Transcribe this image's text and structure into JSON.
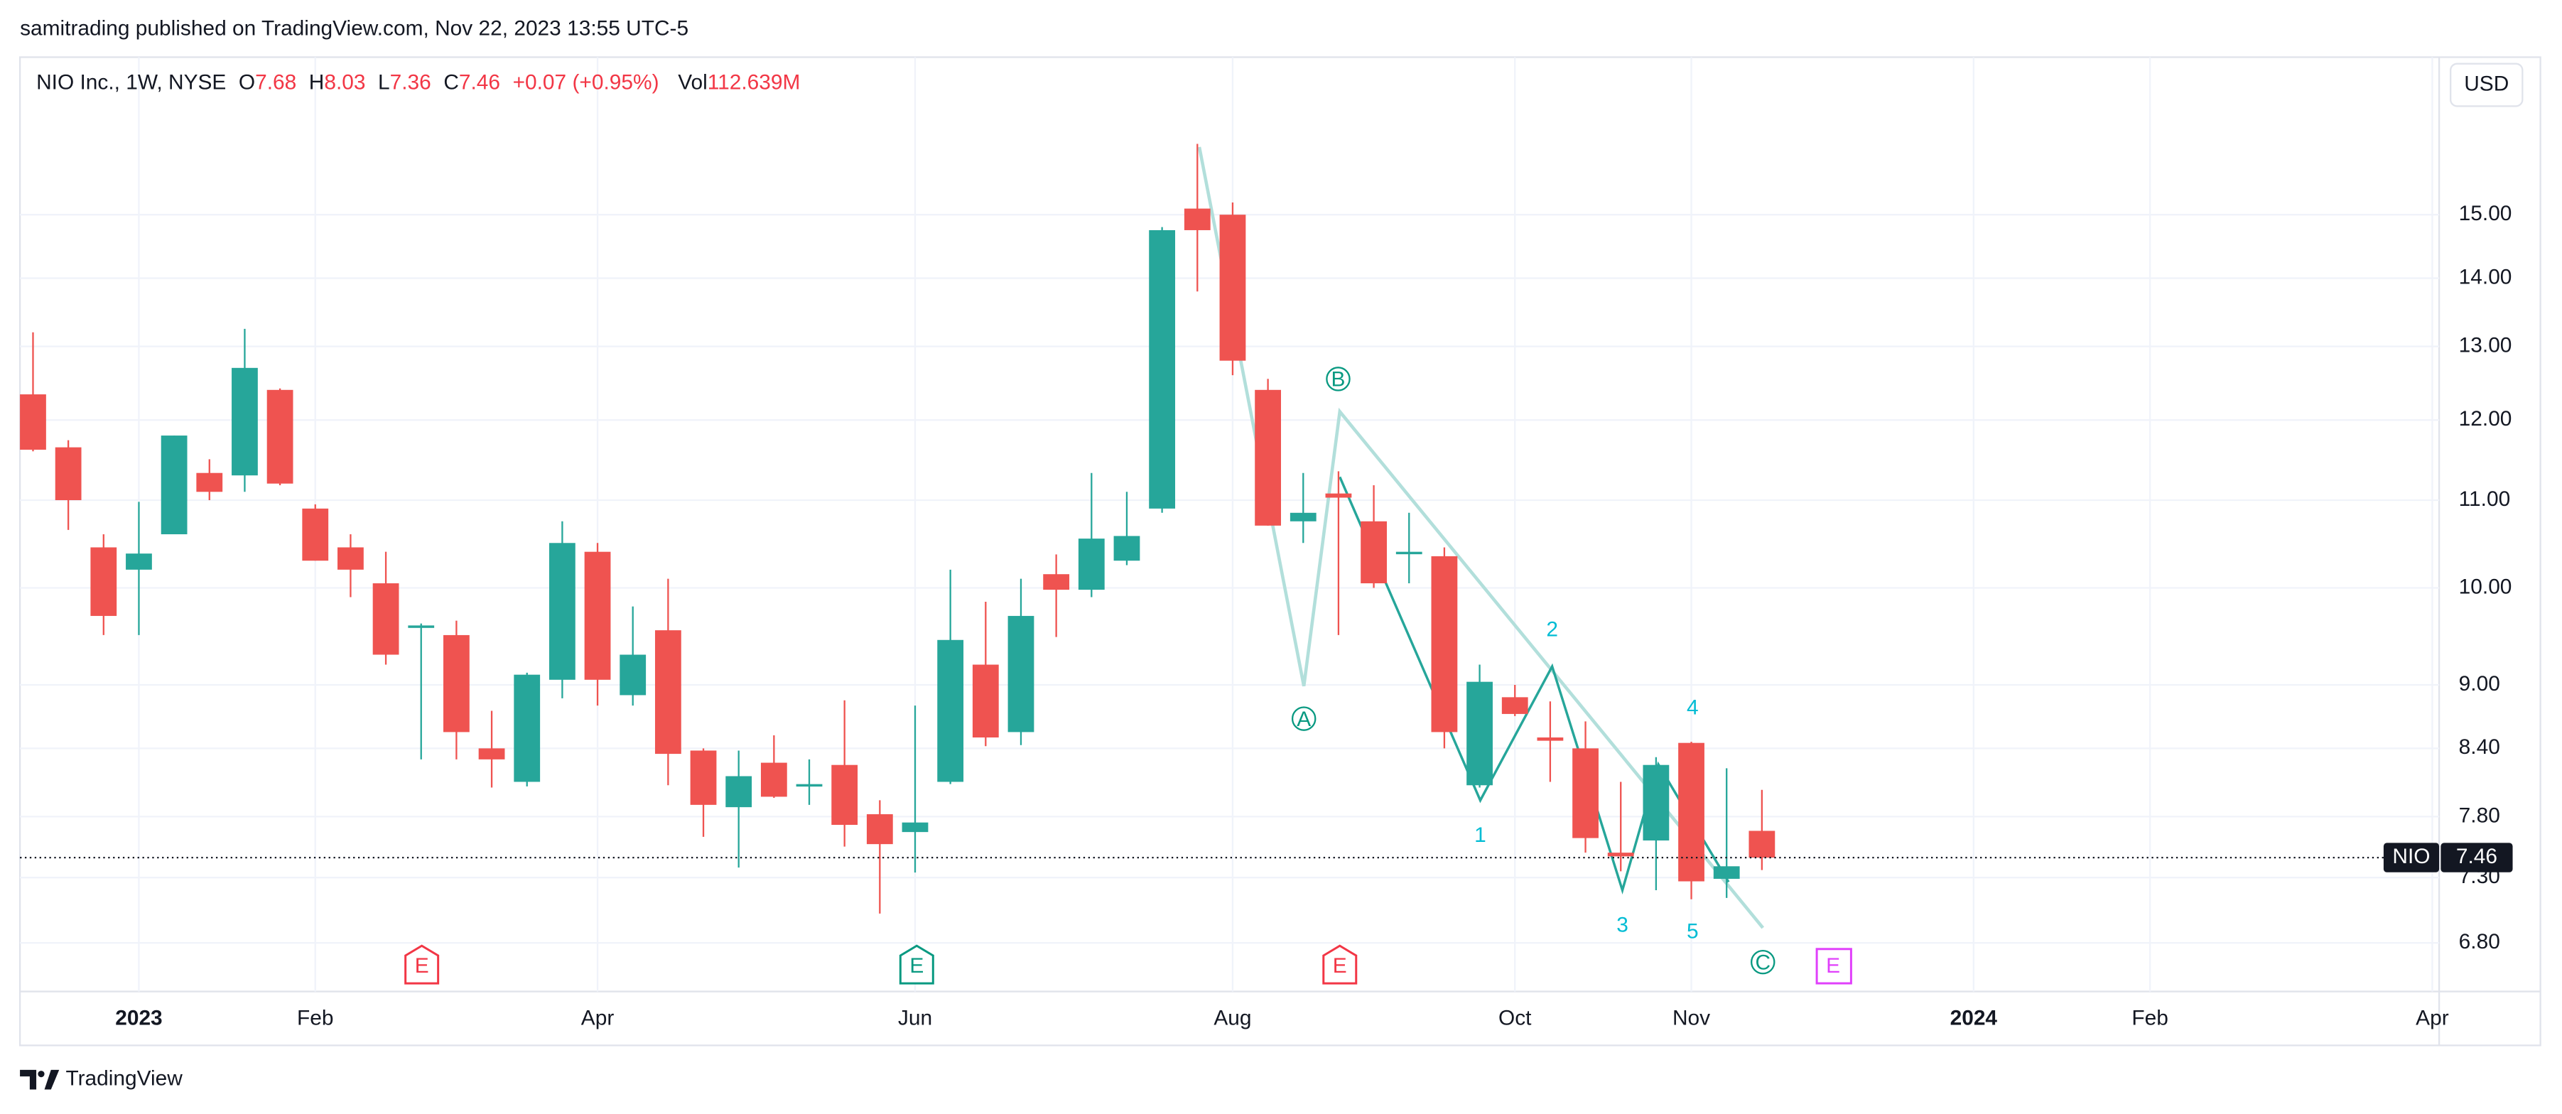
{
  "header": {
    "publisher": "samitrading published on TradingView.com, Nov 22, 2023 13:55 UTC-5"
  },
  "legend_header": {
    "symbol": "NIO Inc., 1W, NYSE",
    "o": "O",
    "h": "H",
    "l": "L",
    "c": "C",
    "change": "+0.07 (+0.95%)",
    "vol_label": "Vol",
    "volume": "112.639M"
  },
  "price_tag": {
    "ticker": "NIO"
  },
  "currency": "USD",
  "chart_data": {
    "type": "candlestick",
    "log_scale": true,
    "grid": true,
    "up_color": "#26a69a",
    "down_color": "#ef5350",
    "categories": [
      null,
      null,
      null,
      "2023",
      null,
      null,
      null,
      null,
      "Feb",
      null,
      null,
      null,
      null,
      null,
      null,
      null,
      "Apr",
      null,
      null,
      null,
      null,
      null,
      null,
      null,
      null,
      "Jun",
      null,
      null,
      null,
      null,
      null,
      null,
      null,
      null,
      "Aug",
      null,
      null,
      null,
      null,
      null,
      null,
      null,
      "Oct",
      null,
      null,
      null,
      null,
      "Nov",
      null,
      null,
      null,
      null,
      null,
      null,
      null,
      "2024",
      null,
      null,
      null,
      null,
      "Feb",
      null,
      null,
      null,
      null,
      null,
      null,
      null,
      "Apr"
    ],
    "open": [
      12.34,
      11.65,
      10.45,
      10.2,
      10.6,
      11.33,
      11.3,
      12.4,
      10.9,
      10.45,
      10.05,
      9.58,
      9.5,
      8.4,
      8.1,
      9.05,
      10.4,
      8.9,
      9.55,
      8.38,
      7.88,
      8.27,
      8.06,
      8.25,
      7.82,
      7.67,
      8.1,
      9.2,
      8.55,
      10.15,
      9.98,
      10.3,
      10.9,
      15.1,
      15.0,
      12.4,
      10.75,
      11.08,
      10.75,
      10.38,
      10.35,
      8.07,
      8.88,
      8.5,
      8.4,
      7.5,
      7.6,
      8.45,
      7.29,
      7.68,
      null,
      null,
      null,
      null,
      null,
      null,
      null,
      null,
      null,
      null,
      null,
      null,
      null,
      null,
      null,
      null,
      null,
      null,
      null
    ],
    "high": [
      13.2,
      11.74,
      10.6,
      10.98,
      11.8,
      11.5,
      13.25,
      12.42,
      10.95,
      10.6,
      10.4,
      9.62,
      9.65,
      8.75,
      9.12,
      10.75,
      10.5,
      9.8,
      10.1,
      8.4,
      8.38,
      8.52,
      8.3,
      8.85,
      7.94,
      8.8,
      10.2,
      9.85,
      10.1,
      10.37,
      11.33,
      11.1,
      14.8,
      16.2,
      15.2,
      12.55,
      11.33,
      11.35,
      11.18,
      10.85,
      10.45,
      9.2,
      9.0,
      8.84,
      8.65,
      8.1,
      8.32,
      8.46,
      8.22,
      8.03,
      null,
      null,
      null,
      null,
      null,
      null,
      null,
      null,
      null,
      null,
      null,
      null,
      null,
      null,
      null,
      null,
      null,
      null,
      null
    ],
    "low": [
      11.6,
      10.65,
      9.5,
      9.5,
      10.6,
      11.0,
      11.1,
      11.18,
      10.3,
      9.9,
      9.2,
      8.3,
      8.3,
      8.05,
      8.06,
      8.87,
      8.8,
      8.8,
      8.07,
      7.63,
      7.38,
      7.96,
      7.9,
      7.55,
      7.02,
      7.34,
      8.08,
      8.42,
      8.43,
      9.48,
      9.9,
      10.25,
      10.85,
      13.8,
      12.6,
      10.7,
      10.5,
      9.5,
      10.0,
      10.05,
      8.4,
      8.05,
      8.7,
      8.1,
      7.5,
      7.35,
      7.2,
      7.13,
      7.14,
      7.36,
      null,
      null,
      null,
      null,
      null,
      null,
      null,
      null,
      null,
      null,
      null,
      null,
      null,
      null,
      null,
      null,
      null,
      null,
      null
    ],
    "close": [
      11.62,
      11.0,
      9.7,
      10.38,
      11.8,
      11.1,
      12.7,
      11.2,
      10.3,
      10.2,
      9.3,
      9.6,
      8.55,
      8.3,
      9.1,
      10.5,
      9.05,
      9.3,
      8.35,
      7.9,
      8.15,
      7.97,
      8.08,
      7.73,
      7.57,
      7.75,
      9.45,
      8.5,
      9.7,
      9.98,
      10.55,
      10.58,
      14.75,
      14.75,
      12.8,
      10.7,
      10.85,
      11.03,
      10.05,
      10.4,
      8.55,
      9.03,
      8.72,
      8.47,
      7.62,
      7.47,
      8.25,
      7.27,
      7.39,
      7.46,
      null,
      null,
      null,
      null,
      null,
      null,
      null,
      null,
      null,
      null,
      null,
      null,
      null,
      null,
      null,
      null,
      null,
      null,
      null
    ],
    "ylim": [
      6.45,
      17.8
    ],
    "yticks": [
      {
        "value": 6.8,
        "label": "6.80"
      },
      {
        "value": 7.3,
        "label": "7.30"
      },
      {
        "value": 7.8,
        "label": "7.80"
      },
      {
        "value": 8.4,
        "label": "8.40"
      },
      {
        "value": 9,
        "label": "9.00"
      },
      {
        "value": 10,
        "label": "10.00"
      },
      {
        "value": 11,
        "label": "11.00"
      },
      {
        "value": 12,
        "label": "12.00"
      },
      {
        "value": 13,
        "label": "13.00"
      },
      {
        "value": 14,
        "label": "14.00"
      },
      {
        "value": 15,
        "label": "15.00"
      }
    ]
  },
  "annotations": {
    "abc": [
      "A",
      "B",
      "C"
    ],
    "waves": [
      "1",
      "2",
      "3",
      "4",
      "5"
    ],
    "earnings": [
      "E",
      "E",
      "E",
      "E"
    ]
  },
  "footer": {
    "brand": "TradingView"
  }
}
